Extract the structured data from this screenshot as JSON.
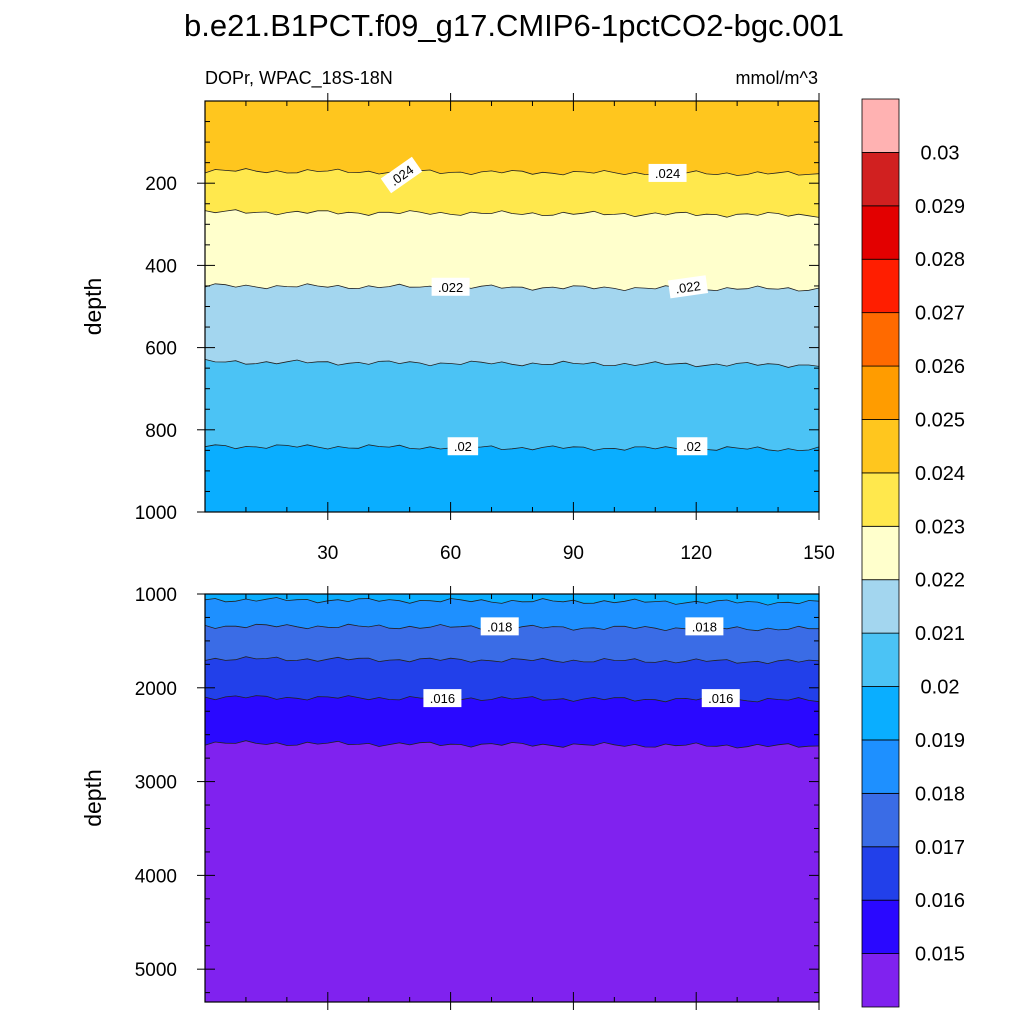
{
  "chart_data": {
    "type": "heatmap",
    "title": "b.e21.B1PCT.f09_g17.CMIP6-1pctCO2-bgc.001",
    "variable": "DOPr, WPAC_18S-18N",
    "units": "mmol/m^3",
    "colorbar": {
      "levels": [
        "0.015",
        "0.016",
        "0.017",
        "0.018",
        "0.019",
        "0.02",
        "0.021",
        "0.022",
        "0.023",
        "0.024",
        "0.025",
        "0.026",
        "0.027",
        "0.028",
        "0.029",
        "0.03"
      ],
      "colors": [
        "#8022ef",
        "#2a08ff",
        "#2240ea",
        "#3a6ce6",
        "#1e90ff",
        "#0aaeff",
        "#4bc3f5",
        "#a3d6ef",
        "#ffffcc",
        "#ffe84d",
        "#ffc61e",
        "#ff9c00",
        "#ff6a00",
        "#ff1e00",
        "#e30000",
        "#d12020",
        "#ffb2b2"
      ]
    },
    "panels": [
      {
        "name": "upper",
        "xlim": [
          0,
          150
        ],
        "xticks": [
          "30",
          "60",
          "90",
          "120",
          "150"
        ],
        "ylim": [
          0,
          1000
        ],
        "ylabel": "depth",
        "yticks": [
          "200",
          "400",
          "600",
          "800",
          "1000"
        ],
        "bands": [
          {
            "top": 0,
            "bottom": 170,
            "value": "0.024-0.025"
          },
          {
            "top": 170,
            "bottom": 270,
            "value": "0.023-0.024"
          },
          {
            "top": 270,
            "bottom": 450,
            "value": "0.022-0.023"
          },
          {
            "top": 450,
            "bottom": 635,
            "value": "0.021-0.022"
          },
          {
            "top": 635,
            "bottom": 840,
            "value": "0.02-0.021"
          },
          {
            "top": 840,
            "bottom": 1000,
            "value": "0.019-0.02"
          }
        ],
        "contour_labels": [
          {
            "text": ".024",
            "x": 48,
            "depth": 180
          },
          {
            "text": ".024",
            "x": 113,
            "depth": 175
          },
          {
            "text": ".022",
            "x": 60,
            "depth": 452
          },
          {
            "text": ".022",
            "x": 118,
            "depth": 452
          },
          {
            "text": ".02",
            "x": 63,
            "depth": 840
          },
          {
            "text": ".02",
            "x": 119,
            "depth": 840
          }
        ]
      },
      {
        "name": "lower",
        "xlim": [
          0,
          150
        ],
        "ylim": [
          1000,
          5350
        ],
        "ylabel": "depth",
        "yticks": [
          "1000",
          "2000",
          "3000",
          "4000",
          "5000"
        ],
        "bands": [
          {
            "top": 1000,
            "bottom": 1060,
            "value": "0.019-0.02"
          },
          {
            "top": 1060,
            "bottom": 1340,
            "value": "0.018-0.019"
          },
          {
            "top": 1340,
            "bottom": 1690,
            "value": "0.017-0.018"
          },
          {
            "top": 1690,
            "bottom": 2100,
            "value": "0.016-0.017"
          },
          {
            "top": 2100,
            "bottom": 2590,
            "value": "0.015-0.016"
          },
          {
            "top": 2590,
            "bottom": 5350,
            "value": "<0.015"
          }
        ],
        "contour_labels": [
          {
            "text": ".018",
            "x": 72,
            "depth": 1345
          },
          {
            "text": ".018",
            "x": 122,
            "depth": 1345
          },
          {
            "text": ".016",
            "x": 58,
            "depth": 2110
          },
          {
            "text": ".016",
            "x": 126,
            "depth": 2110
          }
        ]
      }
    ]
  }
}
